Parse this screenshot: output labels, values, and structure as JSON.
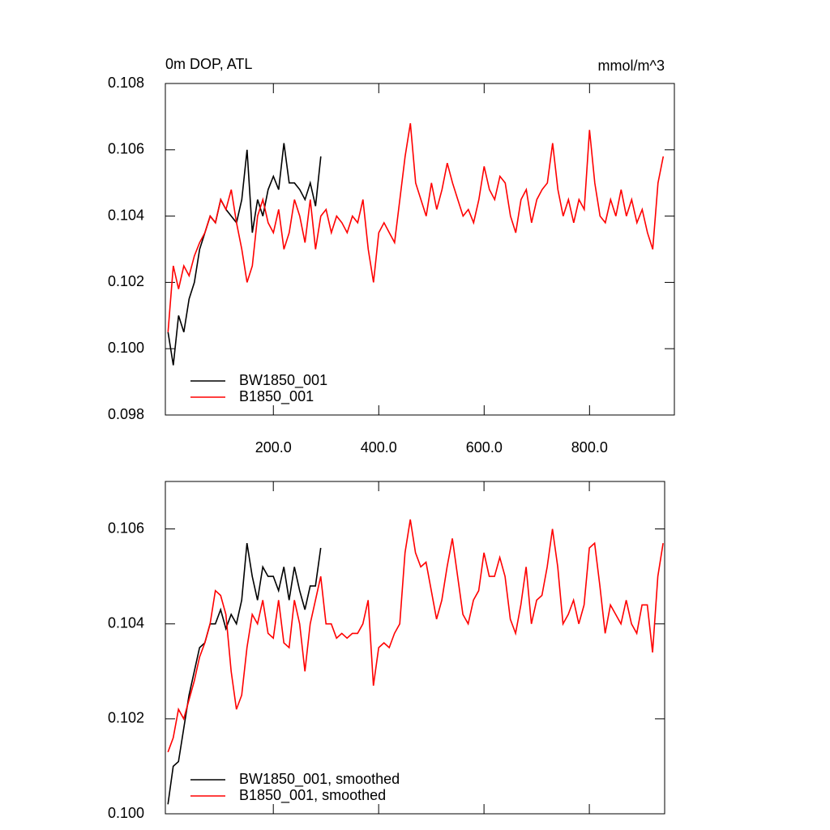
{
  "chart_data": [
    {
      "type": "line",
      "title": "0m DOP, ATL",
      "units": "mmol/m^3",
      "x": [
        0,
        10,
        20,
        30,
        40,
        50,
        60,
        70,
        80,
        90,
        100,
        110,
        120,
        130,
        140,
        150,
        160,
        170,
        180,
        190,
        200,
        210,
        220,
        230,
        240,
        250,
        260,
        270,
        280,
        290,
        300,
        310,
        320,
        330,
        340,
        350,
        360,
        370,
        380,
        390,
        400,
        410,
        420,
        430,
        440,
        450,
        460,
        470,
        480,
        490,
        500,
        510,
        520,
        530,
        540,
        550,
        560,
        570,
        580,
        590,
        600,
        610,
        620,
        630,
        640,
        650,
        660,
        670,
        680,
        690,
        700,
        710,
        720,
        730,
        740,
        750,
        760,
        770,
        780,
        790,
        800,
        810,
        820,
        830,
        840,
        850,
        860,
        870,
        880,
        890,
        900,
        910,
        920,
        930,
        940
      ],
      "xlim": [
        -5,
        961
      ],
      "xticks": [
        {
          "value": 200,
          "label": "200.0"
        },
        {
          "value": 400,
          "label": "400.0"
        },
        {
          "value": 600,
          "label": "600.0"
        },
        {
          "value": 800,
          "label": "800.0"
        }
      ],
      "ylim": [
        0.098,
        0.108
      ],
      "yticks": [
        0.098,
        {
          "value": 0.1,
          "label": "0.100"
        },
        0.102,
        0.104,
        0.106,
        0.108
      ],
      "legend": "lower left",
      "series": [
        {
          "name": "BW1850_001",
          "color": "#000000",
          "values": [
            0.1005,
            0.0995,
            0.101,
            0.1005,
            0.1015,
            0.102,
            0.103,
            0.1035,
            0.104,
            0.1038,
            0.1045,
            0.1042,
            0.104,
            0.1038,
            0.1045,
            0.106,
            0.1035,
            0.1045,
            0.104,
            0.1048,
            0.1052,
            0.1048,
            0.1062,
            0.105,
            0.105,
            0.1048,
            0.1045,
            0.105,
            0.1043,
            0.1058,
            null,
            null,
            null,
            null,
            null,
            null,
            null,
            null,
            null,
            null,
            null,
            null,
            null,
            null,
            null,
            null,
            null,
            null,
            null,
            null,
            null,
            null,
            null,
            null,
            null,
            null,
            null,
            null,
            null,
            null,
            null,
            null,
            null,
            null,
            null,
            null,
            null,
            null,
            null,
            null,
            null,
            null,
            null,
            null,
            null,
            null,
            null,
            null,
            null,
            null,
            null,
            null,
            null,
            null,
            null,
            null,
            null,
            null,
            null,
            null,
            null,
            null,
            null,
            null,
            null
          ]
        },
        {
          "name": "B1850_001",
          "color": "#ff0000",
          "values": [
            0.1005,
            0.1025,
            0.1018,
            0.1025,
            0.1022,
            0.1028,
            0.1032,
            0.1035,
            0.104,
            0.1038,
            0.1045,
            0.1042,
            0.1048,
            0.1038,
            0.103,
            0.102,
            0.1025,
            0.104,
            0.1045,
            0.1038,
            0.1035,
            0.1042,
            0.103,
            0.1035,
            0.1045,
            0.104,
            0.1032,
            0.1045,
            0.103,
            0.104,
            0.1042,
            0.1035,
            0.104,
            0.1038,
            0.1035,
            0.104,
            0.1038,
            0.1045,
            0.103,
            0.102,
            0.1035,
            0.1038,
            0.1035,
            0.1032,
            0.1045,
            0.1058,
            0.1068,
            0.105,
            0.1045,
            0.104,
            0.105,
            0.1042,
            0.1048,
            0.1056,
            0.105,
            0.1045,
            0.104,
            0.1042,
            0.1038,
            0.1045,
            0.1055,
            0.1048,
            0.1045,
            0.1052,
            0.105,
            0.104,
            0.1035,
            0.1045,
            0.1048,
            0.1038,
            0.1045,
            0.1048,
            0.105,
            0.1062,
            0.1048,
            0.104,
            0.1045,
            0.1038,
            0.1045,
            0.1042,
            0.1066,
            0.105,
            0.104,
            0.1038,
            0.1045,
            0.104,
            0.1048,
            0.104,
            0.1045,
            0.1038,
            0.1042,
            0.1035,
            0.103,
            0.105,
            0.1058
          ]
        }
      ]
    },
    {
      "type": "line",
      "x": [
        0,
        10,
        20,
        30,
        40,
        50,
        60,
        70,
        80,
        90,
        100,
        110,
        120,
        130,
        140,
        150,
        160,
        170,
        180,
        190,
        200,
        210,
        220,
        230,
        240,
        250,
        260,
        270,
        280,
        290,
        300,
        310,
        320,
        330,
        340,
        350,
        360,
        370,
        380,
        390,
        400,
        410,
        420,
        430,
        440,
        450,
        460,
        470,
        480,
        490,
        500,
        510,
        520,
        530,
        540,
        550,
        560,
        570,
        580,
        590,
        600,
        610,
        620,
        630,
        640,
        650,
        660,
        670,
        680,
        690,
        700,
        710,
        720,
        730,
        740,
        750,
        760,
        770,
        780,
        790,
        800,
        810,
        820,
        830,
        840,
        850,
        860,
        870,
        880,
        890,
        900,
        910,
        920,
        930,
        940
      ],
      "xlim": [
        -5,
        943
      ],
      "xticks": [
        200,
        400,
        600,
        800
      ],
      "ylim": [
        0.1,
        0.107
      ],
      "yticks": [
        {
          "value": 0.1,
          "label": "0.100"
        },
        0.102,
        0.104,
        0.106
      ],
      "legend": "lower left",
      "series": [
        {
          "name": "BW1850_001, smoothed",
          "color": "#000000",
          "values": [
            0.1002,
            0.101,
            0.1011,
            0.1018,
            0.1025,
            0.103,
            0.1035,
            0.1036,
            0.104,
            0.104,
            0.1043,
            0.1039,
            0.1042,
            0.104,
            0.1045,
            0.1057,
            0.105,
            0.1045,
            0.1052,
            0.105,
            0.105,
            0.1047,
            0.1052,
            0.1045,
            0.1052,
            0.1047,
            0.1043,
            0.1048,
            0.1048,
            0.1056,
            null,
            null,
            null,
            null,
            null,
            null,
            null,
            null,
            null,
            null,
            null,
            null,
            null,
            null,
            null,
            null,
            null,
            null,
            null,
            null,
            null,
            null,
            null,
            null,
            null,
            null,
            null,
            null,
            null,
            null,
            null,
            null,
            null,
            null,
            null,
            null,
            null,
            null,
            null,
            null,
            null,
            null,
            null,
            null,
            null,
            null,
            null,
            null,
            null,
            null,
            null,
            null,
            null,
            null,
            null,
            null,
            null,
            null,
            null,
            null,
            null,
            null,
            null,
            null,
            null
          ]
        },
        {
          "name": "B1850_001, smoothed",
          "color": "#ff0000",
          "values": [
            0.1013,
            0.1016,
            0.1022,
            0.102,
            0.1024,
            0.1028,
            0.1033,
            0.1036,
            0.104,
            0.1047,
            0.1046,
            0.1042,
            0.103,
            0.1022,
            0.1025,
            0.1035,
            0.1042,
            0.104,
            0.1045,
            0.1038,
            0.1037,
            0.1045,
            0.1036,
            0.1035,
            0.1045,
            0.104,
            0.103,
            0.104,
            0.1045,
            0.105,
            0.104,
            0.104,
            0.1037,
            0.1038,
            0.1037,
            0.1038,
            0.1038,
            0.104,
            0.1045,
            0.1027,
            0.1035,
            0.1036,
            0.1035,
            0.1038,
            0.104,
            0.1055,
            0.1062,
            0.1055,
            0.1052,
            0.1053,
            0.1047,
            0.1041,
            0.1045,
            0.1052,
            0.1058,
            0.105,
            0.1042,
            0.104,
            0.1045,
            0.1047,
            0.1055,
            0.105,
            0.105,
            0.1054,
            0.105,
            0.1041,
            0.1038,
            0.1044,
            0.1052,
            0.104,
            0.1045,
            0.1046,
            0.1052,
            0.106,
            0.1052,
            0.104,
            0.1042,
            0.1045,
            0.104,
            0.1044,
            0.1056,
            0.1057,
            0.1048,
            0.1038,
            0.1044,
            0.1042,
            0.104,
            0.1045,
            0.104,
            0.1038,
            0.1044,
            0.1044,
            0.1034,
            0.105,
            0.1057
          ]
        }
      ]
    }
  ]
}
